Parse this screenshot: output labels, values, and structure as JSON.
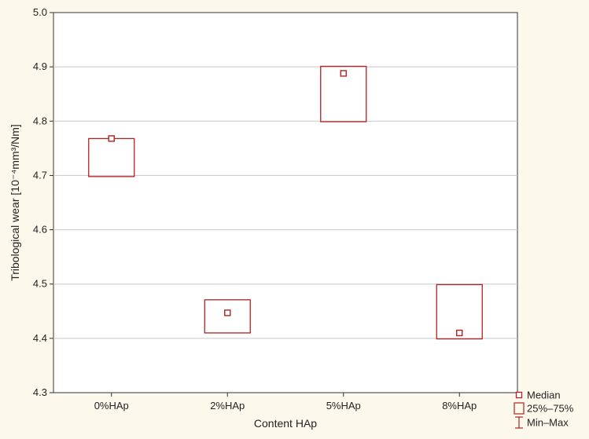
{
  "chart_data": {
    "type": "box",
    "xlabel": "Content HAp",
    "ylabel": "Tribological wear [10⁻⁴mm³/Nm]",
    "categories": [
      "0%HAp",
      "2%HAp",
      "5%HAp",
      "8%HAp"
    ],
    "ylim": [
      4.3,
      5.0
    ],
    "yticks": [
      "4.3",
      "4.4",
      "4.5",
      "4.6",
      "4.7",
      "4.8",
      "4.9",
      "5.0"
    ],
    "grid": true,
    "boxes": [
      {
        "category": "0%HAp",
        "median": 4.768,
        "q1": 4.698,
        "q3": 4.768,
        "min": 4.698,
        "max": 4.768
      },
      {
        "category": "2%HAp",
        "median": 4.447,
        "q1": 4.41,
        "q3": 4.471,
        "min": 4.41,
        "max": 4.471
      },
      {
        "category": "5%HAp",
        "median": 4.888,
        "q1": 4.799,
        "q3": 4.901,
        "min": 4.799,
        "max": 4.901
      },
      {
        "category": "8%HAp",
        "median": 4.41,
        "q1": 4.399,
        "q3": 4.499,
        "min": 4.399,
        "max": 4.499
      }
    ],
    "legend": {
      "position": "bottom-right",
      "entries": [
        {
          "symbol": "median",
          "label": "Median"
        },
        {
          "symbol": "box",
          "label": "25%–75%"
        },
        {
          "symbol": "whisker",
          "label": "Min–Max"
        }
      ]
    },
    "color": "#b22222"
  }
}
